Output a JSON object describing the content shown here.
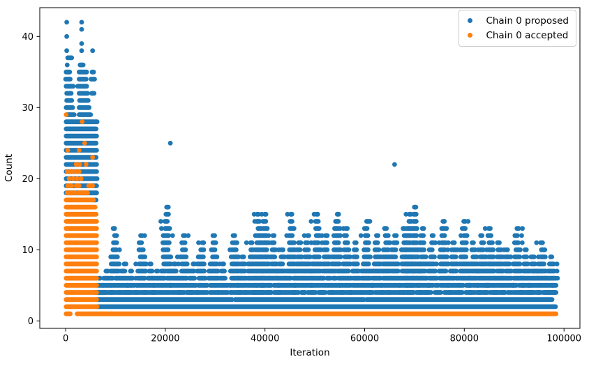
{
  "chart_data": {
    "type": "scatter",
    "title": "",
    "xlabel": "Iteration",
    "ylabel": "Count",
    "xlim": [
      -5200,
      103200
    ],
    "ylim": [
      -1.05,
      44.05
    ],
    "xticks": [
      0,
      20000,
      40000,
      60000,
      80000,
      100000
    ],
    "xtick_labels": [
      "0",
      "20000",
      "40000",
      "60000",
      "80000",
      "100000"
    ],
    "yticks": [
      0,
      10,
      20,
      30,
      40
    ],
    "ytick_labels": [
      "0",
      "10",
      "20",
      "30",
      "40"
    ],
    "grid": false,
    "legend": {
      "position": "upper right",
      "entries": [
        {
          "label": "Chain 0 proposed",
          "color": "#1f77b4",
          "series": "proposed"
        },
        {
          "label": "Chain 0 accepted",
          "color": "#ff7f0e",
          "series": "accepted"
        }
      ]
    },
    "colors": {
      "proposed": "#1f77b4",
      "accepted": "#ff7f0e",
      "spine": "#000000"
    },
    "description": "MCMC proposal/acceptance counts per iteration. Burn-in (iterations 0-6300): proposed counts reach 42, accepted counts up to 29, mostly 1-17. After burn-in: accepted constant at 1, proposed forms repeating spikes between 2 and 16.",
    "bands": {
      "proposed": [
        {
          "level": 2,
          "segments": [
            [
              6300,
              98300
            ]
          ]
        },
        {
          "level": 3,
          "segments": [
            [
              6300,
              33400
            ],
            [
              34000,
              59900
            ],
            [
              60400,
              97600
            ]
          ]
        }
      ],
      "accepted": [
        {
          "level": 1,
          "segments": [
            [
              3500,
              98500
            ]
          ]
        }
      ]
    },
    "burn_in": {
      "x_range": [
        0,
        6300
      ],
      "rows": [
        {
          "l": 1,
          "o": [
            [
              100,
              900
            ],
            [
              2300,
              2600
            ],
            [
              3000,
              3300
            ]
          ]
        },
        {
          "l": 2,
          "o": [
            [
              100,
              6300
            ]
          ]
        },
        {
          "l": 3,
          "o": [
            [
              100,
              6200
            ]
          ]
        },
        {
          "l": 4,
          "o": [
            [
              100,
              6200
            ]
          ]
        },
        {
          "l": 5,
          "o": [
            [
              100,
              6200
            ]
          ]
        },
        {
          "l": 6,
          "o": [
            [
              100,
              6200
            ]
          ]
        },
        {
          "l": 7,
          "o": [
            [
              100,
              6200
            ]
          ]
        },
        {
          "l": 8,
          "o": [
            [
              100,
              6200
            ]
          ]
        },
        {
          "l": 9,
          "o": [
            [
              100,
              6200
            ]
          ]
        },
        {
          "l": 10,
          "o": [
            [
              100,
              6200
            ]
          ]
        },
        {
          "l": 11,
          "o": [
            [
              100,
              6200
            ]
          ]
        },
        {
          "l": 12,
          "o": [
            [
              100,
              6200
            ]
          ]
        },
        {
          "l": 13,
          "o": [
            [
              100,
              6200
            ]
          ]
        },
        {
          "l": 14,
          "o": [
            [
              100,
              6200
            ]
          ]
        },
        {
          "l": 15,
          "o": [
            [
              100,
              6100
            ]
          ]
        },
        {
          "l": 16,
          "o": [
            [
              100,
              5900
            ]
          ]
        },
        {
          "l": 17,
          "b": [
            [
              5500,
              6100
            ]
          ],
          "o": [
            [
              100,
              5600
            ]
          ]
        },
        {
          "l": 18,
          "b": [
            [
              100,
              6200
            ]
          ],
          "o": [
            [
              300,
              1900
            ],
            [
              2600,
              4400
            ]
          ]
        },
        {
          "l": 19,
          "b": [
            [
              100,
              6200
            ]
          ],
          "o": [
            [
              400,
              1200
            ],
            [
              2100,
              2700
            ],
            [
              4600,
              5400
            ]
          ]
        },
        {
          "l": 20,
          "b": [
            [
              100,
              6300
            ]
          ],
          "od": [
            700,
            1500,
            2300,
            3100
          ]
        },
        {
          "l": 21,
          "b": [
            [
              100,
              6200
            ]
          ],
          "od": [
            300,
            900,
            1500,
            2100,
            2700
          ]
        },
        {
          "l": 22,
          "b": [
            [
              100,
              6200
            ]
          ],
          "od": [
            2100,
            2800,
            4100
          ]
        },
        {
          "l": 23,
          "b": [
            [
              100,
              6100
            ]
          ],
          "od": [
            5400
          ]
        },
        {
          "l": 24,
          "b": [
            [
              100,
              6200
            ]
          ],
          "od": [
            400,
            2700
          ]
        },
        {
          "l": 25,
          "b": [
            [
              100,
              6100
            ]
          ],
          "od": [
            3800
          ]
        },
        {
          "l": 26,
          "b": [
            [
              100,
              6200
            ]
          ]
        },
        {
          "l": 27,
          "b": [
            [
              100,
              6100
            ]
          ]
        },
        {
          "l": 28,
          "b": [
            [
              100,
              6300
            ]
          ],
          "od": [
            3300
          ]
        },
        {
          "l": 29,
          "b": [
            [
              200,
              1700
            ],
            [
              2700,
              5000
            ]
          ],
          "od": [
            100
          ]
        },
        {
          "l": 30,
          "b": [
            [
              100,
              1400
            ],
            [
              2700,
              4700
            ]
          ]
        },
        {
          "l": 31,
          "b": [
            [
              200,
              1200
            ],
            [
              2800,
              4500
            ]
          ]
        },
        {
          "l": 32,
          "b": [
            [
              200,
              1100
            ],
            [
              2700,
              4400
            ],
            [
              5200,
              5700
            ]
          ]
        },
        {
          "l": 33,
          "b": [
            [
              100,
              1500
            ],
            [
              2400,
              4200
            ]
          ]
        },
        {
          "l": 34,
          "b": [
            [
              0,
              900
            ],
            [
              2700,
              4100
            ],
            [
              5100,
              5800
            ]
          ]
        },
        {
          "l": 35,
          "b": [
            [
              100,
              800
            ],
            [
              2700,
              4200
            ],
            [
              5300,
              5600
            ]
          ]
        },
        {
          "l": 36,
          "b": [
            [
              2900,
              3500
            ]
          ],
          "bd": [
            300
          ]
        },
        {
          "l": 37,
          "b": [
            [
              400,
              1200
            ]
          ]
        },
        {
          "l": 38,
          "bd": [
            200,
            3200,
            5400
          ]
        },
        {
          "l": 39,
          "bd": [
            3200
          ]
        },
        {
          "l": 40,
          "bd": [
            200
          ]
        },
        {
          "l": 41,
          "bd": [
            3200
          ]
        },
        {
          "l": 42,
          "bd": [
            200,
            3200
          ]
        }
      ]
    },
    "spikes": {
      "series": "proposed",
      "base_level": 4,
      "points": [
        [
          6800,
          6
        ],
        [
          8300,
          7
        ],
        [
          9900,
          13
        ],
        [
          11700,
          8
        ],
        [
          13100,
          7
        ],
        [
          15200,
          12
        ],
        [
          17000,
          8
        ],
        [
          18400,
          7
        ],
        [
          20300,
          16
        ],
        [
          22000,
          8
        ],
        [
          23800,
          12
        ],
        [
          25600,
          8
        ],
        [
          27300,
          11
        ],
        [
          29700,
          12
        ],
        [
          31600,
          8
        ],
        [
          33900,
          12
        ],
        [
          35600,
          9
        ],
        [
          37300,
          11
        ],
        [
          38800,
          15
        ],
        [
          40000,
          15
        ],
        [
          41600,
          12
        ],
        [
          43400,
          10
        ],
        [
          45300,
          15
        ],
        [
          46900,
          11
        ],
        [
          48500,
          12
        ],
        [
          50400,
          15
        ],
        [
          52300,
          12
        ],
        [
          54400,
          15
        ],
        [
          56300,
          13
        ],
        [
          58300,
          11
        ],
        [
          60400,
          14
        ],
        [
          62300,
          12
        ],
        [
          64400,
          13
        ],
        [
          66000,
          12
        ],
        [
          68000,
          13
        ],
        [
          68900,
          15
        ],
        [
          70200,
          16
        ],
        [
          71600,
          13
        ],
        [
          73500,
          12
        ],
        [
          75800,
          14
        ],
        [
          78000,
          11
        ],
        [
          80000,
          14
        ],
        [
          81900,
          11
        ],
        [
          83600,
          12
        ],
        [
          85200,
          13
        ],
        [
          87000,
          11
        ],
        [
          88700,
          10
        ],
        [
          90600,
          13
        ],
        [
          92400,
          10
        ],
        [
          94000,
          9
        ],
        [
          95600,
          11
        ],
        [
          97300,
          9
        ],
        [
          98100,
          6
        ]
      ]
    },
    "outliers": [
      {
        "series": "proposed",
        "x": 21000,
        "y": 25
      },
      {
        "series": "proposed",
        "x": 66000,
        "y": 22
      }
    ]
  }
}
